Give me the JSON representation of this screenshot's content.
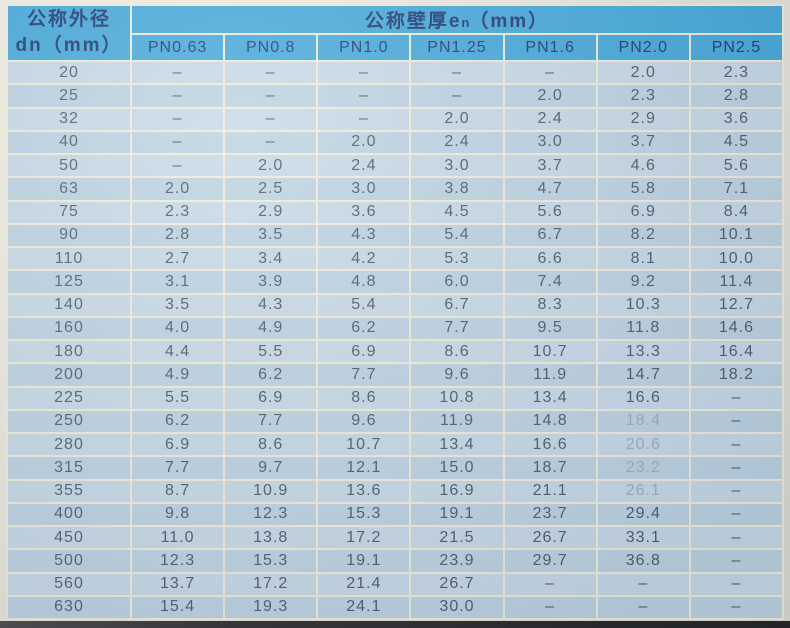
{
  "colors": {
    "page_bg": "#e9e6da",
    "header_blue": "#44a8d9",
    "header_text": "#1c3a72",
    "body_bg_a": "#c7d8e5",
    "body_bg_b": "#bdd2e1",
    "grid": "#efecd8",
    "body_text": "#4c5a6b",
    "faded_text": "#a2abb9",
    "bottom_strip": "#2e2e2e"
  },
  "table": {
    "corner_header_line1": "公称外径",
    "corner_header_line2": "dn（mm）",
    "title_prefix": "公称壁厚",
    "title_sub": "e",
    "title_sub2": "n",
    "title_suffix": "（mm）",
    "columns": [
      "PN0.63",
      "PN0.8",
      "PN1.0",
      "PN1.25",
      "PN1.6",
      "PN2.0",
      "PN2.5"
    ],
    "rows": [
      {
        "dn": "20",
        "values": [
          "–",
          "–",
          "–",
          "–",
          "–",
          "2.0",
          "2.3"
        ]
      },
      {
        "dn": "25",
        "values": [
          "–",
          "–",
          "–",
          "–",
          "2.0",
          "2.3",
          "2.8"
        ]
      },
      {
        "dn": "32",
        "values": [
          "–",
          "–",
          "–",
          "2.0",
          "2.4",
          "2.9",
          "3.6"
        ]
      },
      {
        "dn": "40",
        "values": [
          "–",
          "–",
          "2.0",
          "2.4",
          "3.0",
          "3.7",
          "4.5"
        ]
      },
      {
        "dn": "50",
        "values": [
          "–",
          "2.0",
          "2.4",
          "3.0",
          "3.7",
          "4.6",
          "5.6"
        ]
      },
      {
        "dn": "63",
        "values": [
          "2.0",
          "2.5",
          "3.0",
          "3.8",
          "4.7",
          "5.8",
          "7.1"
        ]
      },
      {
        "dn": "75",
        "values": [
          "2.3",
          "2.9",
          "3.6",
          "4.5",
          "5.6",
          "6.9",
          "8.4"
        ]
      },
      {
        "dn": "90",
        "values": [
          "2.8",
          "3.5",
          "4.3",
          "5.4",
          "6.7",
          "8.2",
          "10.1"
        ]
      },
      {
        "dn": "110",
        "values": [
          "2.7",
          "3.4",
          "4.2",
          "5.3",
          "6.6",
          "8.1",
          "10.0"
        ]
      },
      {
        "dn": "125",
        "values": [
          "3.1",
          "3.9",
          "4.8",
          "6.0",
          "7.4",
          "9.2",
          "11.4"
        ]
      },
      {
        "dn": "140",
        "values": [
          "3.5",
          "4.3",
          "5.4",
          "6.7",
          "8.3",
          "10.3",
          "12.7"
        ]
      },
      {
        "dn": "160",
        "values": [
          "4.0",
          "4.9",
          "6.2",
          "7.7",
          "9.5",
          "11.8",
          "14.6"
        ]
      },
      {
        "dn": "180",
        "values": [
          "4.4",
          "5.5",
          "6.9",
          "8.6",
          "10.7",
          "13.3",
          "16.4"
        ]
      },
      {
        "dn": "200",
        "values": [
          "4.9",
          "6.2",
          "7.7",
          "9.6",
          "11.9",
          "14.7",
          "18.2"
        ]
      },
      {
        "dn": "225",
        "values": [
          "5.5",
          "6.9",
          "8.6",
          "10.8",
          "13.4",
          "16.6",
          "–"
        ]
      },
      {
        "dn": "250",
        "values": [
          "6.2",
          "7.7",
          "9.6",
          "11.9",
          "14.8",
          "18.4",
          "–"
        ]
      },
      {
        "dn": "280",
        "values": [
          "6.9",
          "8.6",
          "10.7",
          "13.4",
          "16.6",
          "20.6",
          "–"
        ]
      },
      {
        "dn": "315",
        "values": [
          "7.7",
          "9.7",
          "12.1",
          "15.0",
          "18.7",
          "23.2",
          "–"
        ]
      },
      {
        "dn": "355",
        "values": [
          "8.7",
          "10.9",
          "13.6",
          "16.9",
          "21.1",
          "26.1",
          "–"
        ]
      },
      {
        "dn": "400",
        "values": [
          "9.8",
          "12.3",
          "15.3",
          "19.1",
          "23.7",
          "29.4",
          "–"
        ]
      },
      {
        "dn": "450",
        "values": [
          "11.0",
          "13.8",
          "17.2",
          "21.5",
          "26.7",
          "33.1",
          "–"
        ]
      },
      {
        "dn": "500",
        "values": [
          "12.3",
          "15.3",
          "19.1",
          "23.9",
          "29.7",
          "36.8",
          "–"
        ]
      },
      {
        "dn": "560",
        "values": [
          "13.7",
          "17.2",
          "21.4",
          "26.7",
          "–",
          "–",
          "–"
        ]
      },
      {
        "dn": "630",
        "values": [
          "15.4",
          "19.3",
          "24.1",
          "30.0",
          "–",
          "–",
          "–"
        ]
      }
    ],
    "faded_cells": [
      [
        15,
        5
      ],
      [
        16,
        5
      ],
      [
        17,
        5
      ],
      [
        18,
        5
      ]
    ]
  }
}
